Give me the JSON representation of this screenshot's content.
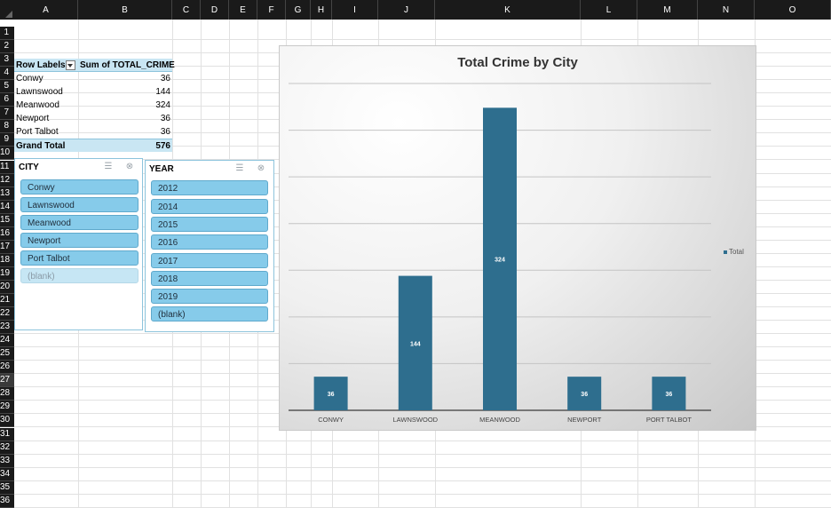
{
  "columns": [
    "A",
    "B",
    "C",
    "D",
    "E",
    "F",
    "G",
    "H",
    "I",
    "J",
    "K",
    "L",
    "M",
    "N",
    "O"
  ],
  "rows": [
    "1",
    "2",
    "3",
    "4",
    "5",
    "6",
    "7",
    "8",
    "9",
    "10",
    "11",
    "12",
    "13",
    "14",
    "15",
    "16",
    "17",
    "18",
    "19",
    "20",
    "21",
    "22",
    "23",
    "24",
    "25",
    "26",
    "27",
    "28",
    "29",
    "30",
    "31",
    "32",
    "33",
    "34",
    "35",
    "36"
  ],
  "active_row": "27",
  "pivot": {
    "header_label": "Row Labels",
    "header_value": "Sum of TOTAL_CRIME",
    "rows": [
      {
        "label": "Conwy",
        "value": "36"
      },
      {
        "label": "Lawnswood",
        "value": "144"
      },
      {
        "label": "Meanwood",
        "value": "324"
      },
      {
        "label": "Newport",
        "value": "36"
      },
      {
        "label": "Port Talbot",
        "value": "36"
      }
    ],
    "total_label": "Grand Total",
    "total_value": "576"
  },
  "slicer_city": {
    "title": "CITY",
    "items": [
      "Conwy",
      "Lawnswood",
      "Meanwood",
      "Newport",
      "Port Talbot",
      "(blank)"
    ],
    "empty_items": [
      "(blank)"
    ],
    "icons": [
      "multi-select-icon",
      "clear-filter-icon"
    ]
  },
  "slicer_year": {
    "title": "YEAR",
    "items": [
      "2012",
      "2014",
      "2015",
      "2016",
      "2017",
      "2018",
      "2019",
      "(blank)"
    ],
    "icons": [
      "multi-select-icon",
      "clear-filter-icon"
    ]
  },
  "chart_data": {
    "type": "bar",
    "title": "Total Crime by City",
    "categories": [
      "CONWY",
      "LAWNSWOOD",
      "MEANWOOD",
      "NEWPORT",
      "PORT TALBOT"
    ],
    "series": [
      {
        "name": "Total",
        "values": [
          36,
          144,
          324,
          36,
          36
        ]
      }
    ],
    "ylim": [
      0,
      350
    ],
    "grid": true,
    "legend": "right",
    "bar_color": "#2e6e8e",
    "xlabel": "",
    "ylabel": ""
  }
}
